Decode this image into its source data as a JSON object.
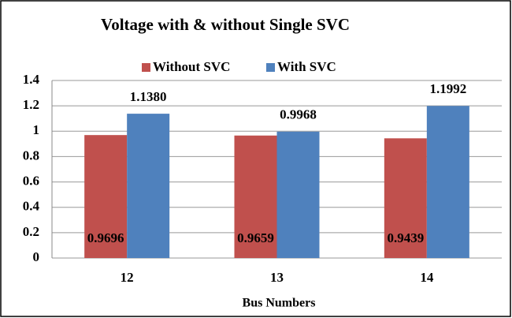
{
  "chart_data": {
    "type": "bar",
    "title": "Voltage with & without Single SVC",
    "x_label": "Bus Numbers",
    "categories": [
      "12",
      "13",
      "14"
    ],
    "series": [
      {
        "name": "Without SVC",
        "color": "#c0504d",
        "values": [
          0.9696,
          0.9659,
          0.9439
        ]
      },
      {
        "name": "With SVC",
        "color": "#4f81bd",
        "values": [
          1.138,
          0.9968,
          1.1992
        ],
        "value_labels": [
          "1.1380",
          "0.9968",
          "1.1992"
        ]
      }
    ],
    "ylim": [
      0,
      1.4
    ],
    "yticks": [
      0,
      0.2,
      0.4,
      0.6,
      0.8,
      1,
      1.2,
      1.4
    ],
    "grid": true,
    "legend": "top"
  }
}
